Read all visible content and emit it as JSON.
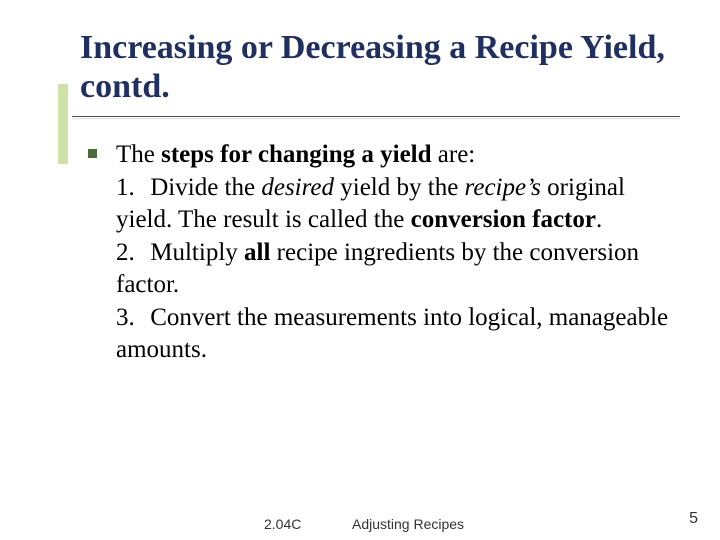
{
  "colors": {
    "title_color": "#1f2f5f",
    "accent_bar": "#cfe0a8",
    "bullet_marker": "#4a6a3a",
    "background": "#ffffff",
    "body_text": "#000000",
    "footer_text": "#333333"
  },
  "typography": {
    "title_font": "Times New Roman",
    "title_size_pt": 26,
    "body_font": "Times New Roman",
    "body_size_pt": 19,
    "footer_font": "Arial",
    "footer_size_pt": 11
  },
  "title": "Increasing or Decreasing a Recipe Yield, contd.",
  "bullet_lead_pre": "The ",
  "bullet_lead_bold": "steps for changing a yield",
  "bullet_lead_post": " are:",
  "step1_num": "1.",
  "step1_a": "Divide the ",
  "step1_i1": "desired",
  "step1_b": " yield by the ",
  "step1_i2": "recipe’s",
  "step1_c": " original yield.  The result is called the ",
  "step1_bold": "conversion factor",
  "step1_d": ".",
  "step2_num": "2.",
  "step2_a": "Multiply ",
  "step2_bold": "all",
  "step2_b": " recipe ingredients by the conversion factor.",
  "step3_num": "3.",
  "step3_a": "Convert the measurements into logical, manageable amounts.",
  "footer_code": "2.04C",
  "footer_title": "Adjusting Recipes",
  "page_number": "5"
}
